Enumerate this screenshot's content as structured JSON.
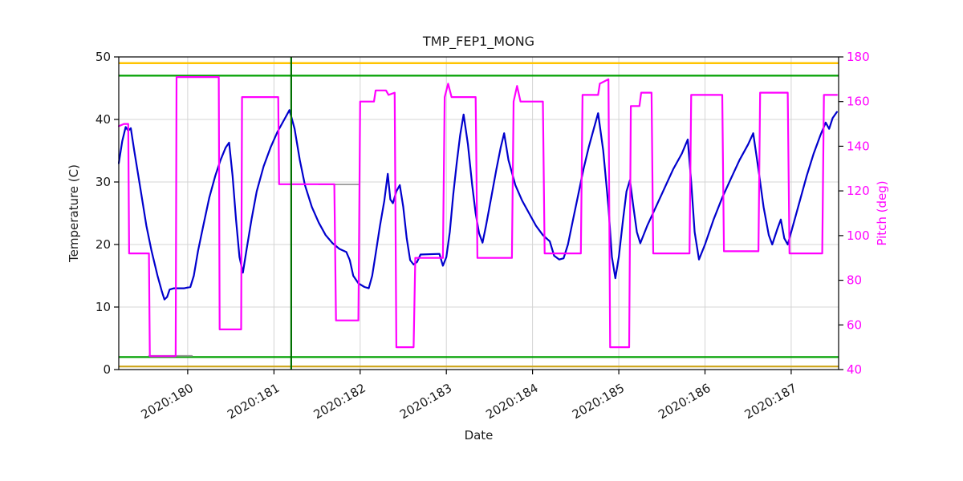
{
  "figure": {
    "background": "#ffffff"
  },
  "chart_data": {
    "type": "line",
    "title": "TMP_FEP1_MONG",
    "xlabel": "Date",
    "ylabel_left": "Temperature (C)",
    "ylabel_right": "Pitch (deg)",
    "grid": true,
    "x_domain": [
      179.2,
      187.55
    ],
    "y_left": {
      "domain": [
        0,
        50
      ],
      "ticks": [
        0,
        10,
        20,
        30,
        40,
        50
      ],
      "color": "#1a1a1a"
    },
    "y_right": {
      "domain": [
        40,
        180
      ],
      "ticks": [
        40,
        60,
        80,
        100,
        120,
        140,
        160,
        180
      ],
      "color": "#ff00ff"
    },
    "x_ticks": {
      "values": [
        180,
        181,
        182,
        183,
        184,
        185,
        186,
        187
      ],
      "labels": [
        "2020:180",
        "2020:181",
        "2020:182",
        "2020:183",
        "2020:184",
        "2020:185",
        "2020:186",
        "2020:187"
      ]
    },
    "colors": {
      "grid": "#d4d4d4",
      "spine": "#000000",
      "title": "#1a1a1a",
      "temperature": "#0000cd",
      "pitch": "#ff00ff",
      "gray_flag": "#999999",
      "upper_warning": "#ffc400",
      "upper_caution": "#00a000",
      "lower_caution": "#00a000",
      "lower_warning": "#cfa720",
      "time_marker": "#007000"
    },
    "hlines": [
      {
        "name": "upper-yellow-limit",
        "value": 49,
        "color": "#ffc400",
        "width": 2.5
      },
      {
        "name": "upper-green-limit",
        "value": 47,
        "color": "#00a000",
        "width": 2.2
      },
      {
        "name": "lower-green-limit",
        "value": 2,
        "color": "#00a000",
        "width": 2.2
      },
      {
        "name": "lower-yellow-limit",
        "value": 0.5,
        "color": "#cfa720",
        "width": 2.2
      }
    ],
    "vlines": [
      {
        "name": "current-time-marker",
        "value": 181.2,
        "color": "#007000",
        "width": 2.2
      }
    ],
    "series": [
      {
        "name": "gray-flag",
        "axis": "left",
        "color": "#999999",
        "width": 1.8,
        "points": [
          [
            179.55,
            2.2
          ],
          [
            180.05,
            2.2
          ],
          null,
          [
            181.52,
            29.6
          ],
          [
            181.98,
            29.6
          ]
        ]
      },
      {
        "name": "temperature",
        "axis": "left",
        "color": "#0000cd",
        "width": 2.2,
        "points": [
          [
            179.2,
            33.0
          ],
          [
            179.24,
            36.5
          ],
          [
            179.28,
            38.8
          ],
          [
            179.31,
            38.2
          ],
          [
            179.34,
            38.6
          ],
          [
            179.38,
            35.0
          ],
          [
            179.45,
            29.0
          ],
          [
            179.52,
            23.0
          ],
          [
            179.58,
            19.0
          ],
          [
            179.65,
            15.0
          ],
          [
            179.7,
            12.5
          ],
          [
            179.73,
            11.2
          ],
          [
            179.76,
            11.6
          ],
          [
            179.79,
            12.8
          ],
          [
            179.84,
            13.0
          ],
          [
            179.96,
            13.0
          ],
          [
            180.03,
            13.2
          ],
          [
            180.07,
            15.0
          ],
          [
            180.12,
            19.0
          ],
          [
            180.18,
            23.0
          ],
          [
            180.25,
            27.5
          ],
          [
            180.32,
            31.0
          ],
          [
            180.38,
            33.5
          ],
          [
            180.44,
            35.5
          ],
          [
            180.48,
            36.3
          ],
          [
            180.52,
            31.0
          ],
          [
            180.56,
            24.0
          ],
          [
            180.6,
            18.0
          ],
          [
            180.64,
            15.5
          ],
          [
            180.68,
            19.0
          ],
          [
            180.74,
            24.0
          ],
          [
            180.8,
            28.5
          ],
          [
            180.88,
            32.5
          ],
          [
            180.96,
            35.5
          ],
          [
            181.04,
            38.0
          ],
          [
            181.12,
            40.0
          ],
          [
            181.18,
            41.5
          ],
          [
            181.24,
            38.5
          ],
          [
            181.3,
            33.5
          ],
          [
            181.36,
            29.5
          ],
          [
            181.44,
            26.0
          ],
          [
            181.52,
            23.5
          ],
          [
            181.6,
            21.5
          ],
          [
            181.68,
            20.2
          ],
          [
            181.76,
            19.3
          ],
          [
            181.84,
            18.8
          ],
          [
            181.88,
            17.5
          ],
          [
            181.92,
            15.0
          ],
          [
            181.98,
            13.8
          ],
          [
            182.05,
            13.2
          ],
          [
            182.1,
            13.0
          ],
          [
            182.14,
            15.0
          ],
          [
            182.18,
            18.5
          ],
          [
            182.23,
            23.0
          ],
          [
            182.28,
            27.0
          ],
          [
            182.32,
            31.3
          ],
          [
            182.35,
            27.2
          ],
          [
            182.38,
            26.6
          ],
          [
            182.42,
            28.5
          ],
          [
            182.46,
            29.5
          ],
          [
            182.5,
            26.0
          ],
          [
            182.54,
            21.0
          ],
          [
            182.58,
            17.5
          ],
          [
            182.62,
            16.8
          ],
          [
            182.66,
            17.2
          ],
          [
            182.7,
            18.4
          ],
          [
            182.92,
            18.5
          ],
          [
            182.96,
            16.6
          ],
          [
            183.0,
            18.0
          ],
          [
            183.04,
            22.0
          ],
          [
            183.08,
            28.0
          ],
          [
            183.12,
            33.0
          ],
          [
            183.16,
            37.5
          ],
          [
            183.2,
            40.8
          ],
          [
            183.25,
            36.0
          ],
          [
            183.3,
            29.5
          ],
          [
            183.34,
            25.0
          ],
          [
            183.38,
            21.8
          ],
          [
            183.42,
            20.3
          ],
          [
            183.46,
            23.0
          ],
          [
            183.52,
            27.5
          ],
          [
            183.58,
            32.0
          ],
          [
            183.63,
            35.5
          ],
          [
            183.67,
            37.8
          ],
          [
            183.72,
            33.5
          ],
          [
            183.8,
            29.5
          ],
          [
            183.88,
            27.0
          ],
          [
            183.96,
            25.0
          ],
          [
            184.04,
            23.0
          ],
          [
            184.12,
            21.5
          ],
          [
            184.2,
            20.5
          ],
          [
            184.25,
            18.2
          ],
          [
            184.31,
            17.6
          ],
          [
            184.36,
            17.8
          ],
          [
            184.41,
            20.0
          ],
          [
            184.47,
            24.0
          ],
          [
            184.53,
            28.0
          ],
          [
            184.59,
            32.0
          ],
          [
            184.65,
            35.5
          ],
          [
            184.71,
            38.5
          ],
          [
            184.76,
            41.0
          ],
          [
            184.82,
            35.0
          ],
          [
            184.88,
            26.0
          ],
          [
            184.92,
            18.0
          ],
          [
            184.96,
            14.6
          ],
          [
            185.0,
            18.0
          ],
          [
            185.05,
            24.0
          ],
          [
            185.09,
            28.5
          ],
          [
            185.13,
            30.3
          ],
          [
            185.17,
            26.0
          ],
          [
            185.21,
            22.0
          ],
          [
            185.25,
            20.2
          ],
          [
            185.33,
            23.0
          ],
          [
            185.43,
            26.0
          ],
          [
            185.53,
            29.0
          ],
          [
            185.63,
            32.0
          ],
          [
            185.73,
            34.5
          ],
          [
            185.8,
            36.8
          ],
          [
            185.84,
            30.0
          ],
          [
            185.88,
            22.0
          ],
          [
            185.93,
            17.6
          ],
          [
            186.0,
            20.0
          ],
          [
            186.1,
            24.0
          ],
          [
            186.2,
            27.5
          ],
          [
            186.3,
            30.5
          ],
          [
            186.4,
            33.5
          ],
          [
            186.5,
            36.0
          ],
          [
            186.56,
            37.8
          ],
          [
            186.62,
            32.0
          ],
          [
            186.68,
            26.0
          ],
          [
            186.74,
            21.5
          ],
          [
            186.78,
            20.0
          ],
          [
            186.84,
            22.5
          ],
          [
            186.88,
            24.0
          ],
          [
            186.92,
            21.0
          ],
          [
            186.96,
            20.0
          ],
          [
            187.02,
            23.0
          ],
          [
            187.1,
            27.0
          ],
          [
            187.18,
            31.0
          ],
          [
            187.26,
            34.5
          ],
          [
            187.34,
            37.5
          ],
          [
            187.4,
            39.5
          ],
          [
            187.44,
            38.5
          ],
          [
            187.48,
            40.2
          ],
          [
            187.53,
            41.2
          ]
        ]
      },
      {
        "name": "pitch",
        "axis": "right",
        "color": "#ff00ff",
        "width": 2.2,
        "points": [
          [
            179.2,
            149
          ],
          [
            179.26,
            150
          ],
          [
            179.31,
            150
          ],
          [
            179.32,
            92
          ],
          [
            179.55,
            92
          ],
          [
            179.56,
            46
          ],
          [
            179.86,
            46
          ],
          [
            179.87,
            171
          ],
          [
            180.36,
            171
          ],
          [
            180.37,
            58
          ],
          [
            180.62,
            58
          ],
          [
            180.63,
            162
          ],
          [
            181.05,
            162
          ],
          [
            181.06,
            123
          ],
          [
            181.7,
            123
          ],
          [
            181.72,
            62
          ],
          [
            181.98,
            62
          ],
          [
            182.0,
            160
          ],
          [
            182.16,
            160
          ],
          [
            182.18,
            165
          ],
          [
            182.3,
            165
          ],
          [
            182.33,
            163
          ],
          [
            182.4,
            164
          ],
          [
            182.42,
            50
          ],
          [
            182.62,
            50
          ],
          [
            182.64,
            90
          ],
          [
            182.96,
            90
          ],
          [
            182.98,
            162
          ],
          [
            183.02,
            168
          ],
          [
            183.06,
            162
          ],
          [
            183.34,
            162
          ],
          [
            183.36,
            90
          ],
          [
            183.76,
            90
          ],
          [
            183.78,
            160
          ],
          [
            183.82,
            167
          ],
          [
            183.86,
            160
          ],
          [
            184.12,
            160
          ],
          [
            184.14,
            92
          ],
          [
            184.56,
            92
          ],
          [
            184.58,
            163
          ],
          [
            184.76,
            163
          ],
          [
            184.78,
            168
          ],
          [
            184.88,
            170
          ],
          [
            184.9,
            50
          ],
          [
            185.12,
            50
          ],
          [
            185.14,
            158
          ],
          [
            185.24,
            158
          ],
          [
            185.26,
            164
          ],
          [
            185.38,
            164
          ],
          [
            185.4,
            92
          ],
          [
            185.82,
            92
          ],
          [
            185.84,
            163
          ],
          [
            186.2,
            163
          ],
          [
            186.22,
            93
          ],
          [
            186.62,
            93
          ],
          [
            186.64,
            164
          ],
          [
            186.96,
            164
          ],
          [
            186.98,
            92
          ],
          [
            187.36,
            92
          ],
          [
            187.38,
            163
          ],
          [
            187.53,
            163
          ]
        ]
      }
    ]
  }
}
